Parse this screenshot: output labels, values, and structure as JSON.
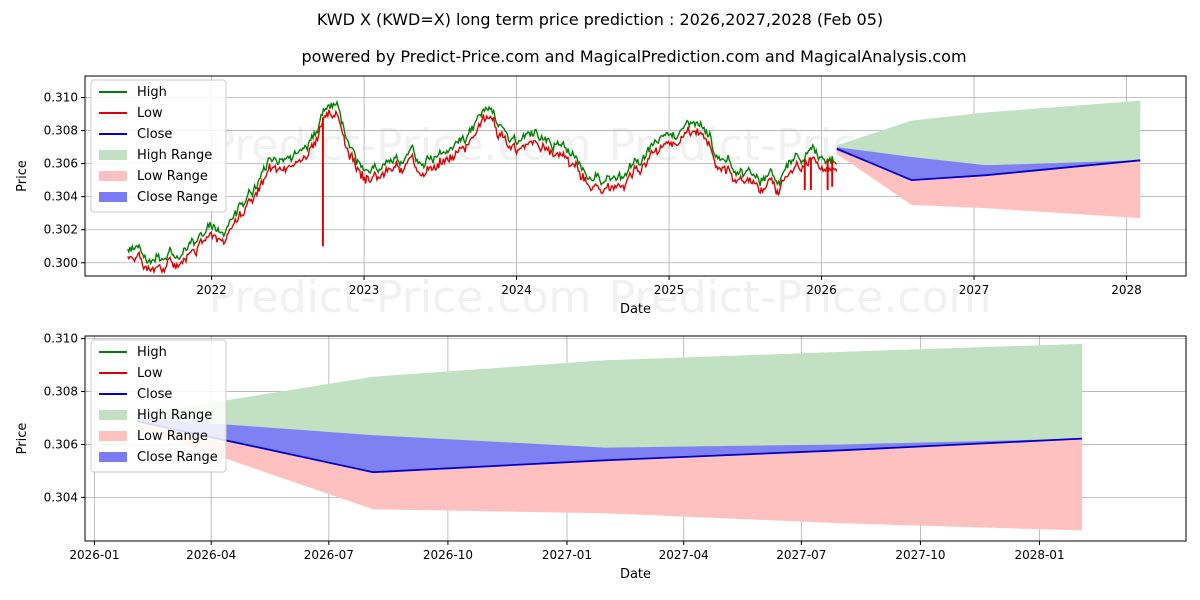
{
  "page": {
    "title": "KWD X (KWD=X) long term price prediction : 2026,2027,2028 (Feb 05)",
    "subtitle": "powered by Predict-Price.com and MagicalPrediction.com and MagicalAnalysis.com",
    "watermark": "Predict-Price.com"
  },
  "colors": {
    "high": "#008000",
    "low": "#e00000",
    "close": "#0000cc",
    "high_range": "#c2e0c2",
    "low_range": "#ffc0c0",
    "close_range": "#7b7bf5",
    "grid": "#b0b0b0"
  },
  "legend": {
    "items": [
      {
        "label": "High",
        "kind": "line",
        "color_key": "high"
      },
      {
        "label": "Low",
        "kind": "line",
        "color_key": "low"
      },
      {
        "label": "Close",
        "kind": "line",
        "color_key": "close"
      },
      {
        "label": "High Range",
        "kind": "patch",
        "color_key": "high_range"
      },
      {
        "label": "Low Range",
        "kind": "patch",
        "color_key": "low_range"
      },
      {
        "label": "Close Range",
        "kind": "patch",
        "color_key": "close_range"
      }
    ]
  },
  "chart_data": [
    {
      "type": "line",
      "id": "history",
      "xlabel": "Date",
      "ylabel": "Price",
      "xlim": [
        2021.17,
        2028.39
      ],
      "ylim": [
        0.2992,
        0.3113
      ],
      "x_ticks": [
        2022,
        2023,
        2024,
        2025,
        2026,
        2027,
        2028
      ],
      "x_tick_labels": [
        "2022",
        "2023",
        "2024",
        "2025",
        "2026",
        "2027",
        "2028"
      ],
      "y_ticks": [
        0.3,
        0.302,
        0.304,
        0.306,
        0.308,
        0.31
      ],
      "y_tick_labels": [
        "0.300",
        "0.302",
        "0.304",
        "0.306",
        "0.308",
        "0.310"
      ],
      "grid": true,
      "legend_position": "upper-left",
      "history_anchors": [
        [
          2021.45,
          0.3006
        ],
        [
          2021.55,
          0.3003
        ],
        [
          2021.62,
          0.3
        ],
        [
          2021.75,
          0.3005
        ],
        [
          2021.9,
          0.3012
        ],
        [
          2022.0,
          0.3022
        ],
        [
          2022.08,
          0.302
        ],
        [
          2022.15,
          0.3022
        ],
        [
          2022.22,
          0.3032
        ],
        [
          2022.3,
          0.3045
        ],
        [
          2022.37,
          0.3058
        ],
        [
          2022.45,
          0.3064
        ],
        [
          2022.55,
          0.306
        ],
        [
          2022.62,
          0.3068
        ],
        [
          2022.7,
          0.3078
        ],
        [
          2022.76,
          0.3098
        ],
        [
          2022.82,
          0.3094
        ],
        [
          2022.88,
          0.307
        ],
        [
          2022.95,
          0.3058
        ],
        [
          2023.05,
          0.3052
        ],
        [
          2023.15,
          0.306
        ],
        [
          2023.28,
          0.3062
        ],
        [
          2023.4,
          0.3058
        ],
        [
          2023.5,
          0.3066
        ],
        [
          2023.6,
          0.307
        ],
        [
          2023.7,
          0.3078
        ],
        [
          2023.8,
          0.3088
        ],
        [
          2023.9,
          0.308
        ],
        [
          2024.0,
          0.307
        ],
        [
          2024.12,
          0.3072
        ],
        [
          2024.25,
          0.307
        ],
        [
          2024.4,
          0.306
        ],
        [
          2024.5,
          0.3052
        ],
        [
          2024.6,
          0.305
        ],
        [
          2024.7,
          0.3046
        ],
        [
          2024.78,
          0.3058
        ],
        [
          2024.9,
          0.3068
        ],
        [
          2025.0,
          0.3072
        ],
        [
          2025.1,
          0.3078
        ],
        [
          2025.2,
          0.3078
        ],
        [
          2025.3,
          0.3066
        ],
        [
          2025.4,
          0.306
        ],
        [
          2025.5,
          0.3052
        ],
        [
          2025.62,
          0.305
        ],
        [
          2025.72,
          0.305
        ],
        [
          2025.82,
          0.306
        ],
        [
          2025.92,
          0.3064
        ],
        [
          2026.0,
          0.3062
        ],
        [
          2026.1,
          0.3062
        ]
      ],
      "spikes": [
        {
          "x": 2022.73,
          "low": 0.301
        },
        {
          "x": 2025.89,
          "low": 0.3044
        },
        {
          "x": 2025.93,
          "low": 0.3044
        },
        {
          "x": 2026.04,
          "low": 0.3044
        },
        {
          "x": 2026.07,
          "low": 0.3046
        }
      ],
      "forecast": {
        "x": [
          2026.1,
          2026.59,
          2027.08,
          2028.09
        ],
        "close": [
          0.3069,
          0.305,
          0.3053,
          0.3062
        ],
        "high_upper": [
          0.3071,
          0.3086,
          0.3091,
          0.3098
        ],
        "low_lower": [
          0.3066,
          0.3035,
          0.3033,
          0.3027
        ],
        "close_upper": [
          0.307,
          0.3064,
          0.3059,
          0.3062
        ],
        "close_lower": [
          0.3068,
          0.305,
          0.3053,
          0.3062
        ]
      }
    },
    {
      "type": "area",
      "id": "forecast-zoom",
      "xlabel": "Date",
      "ylabel": "Price",
      "xlim": [
        2025.98,
        2028.31
      ],
      "ylim": [
        0.30235,
        0.3101
      ],
      "x_ticks": [
        2026.0,
        2026.247,
        2026.496,
        2026.748,
        2027.0,
        2027.247,
        2027.496,
        2027.748,
        2028.0
      ],
      "x_tick_labels": [
        "2026-01",
        "2026-04",
        "2026-07",
        "2026-10",
        "2027-01",
        "2027-04",
        "2027-07",
        "2027-10",
        "2028-01"
      ],
      "y_ticks": [
        0.304,
        0.306,
        0.308,
        0.31
      ],
      "y_tick_labels": [
        "0.304",
        "0.306",
        "0.308",
        "0.310"
      ],
      "grid": true,
      "legend_position": "upper-left",
      "forecast": {
        "x": [
          2026.09,
          2026.59,
          2027.08,
          2027.58,
          2028.09
        ],
        "close": [
          0.30688,
          0.30495,
          0.3054,
          0.30578,
          0.30622
        ],
        "high_upper": [
          0.30712,
          0.30856,
          0.30918,
          0.3095,
          0.3098
        ],
        "low_lower": [
          0.30662,
          0.30355,
          0.3034,
          0.30302,
          0.30275
        ],
        "close_upper": [
          0.307,
          0.30635,
          0.30588,
          0.306,
          0.30622
        ],
        "close_lower": [
          0.30688,
          0.30495,
          0.3054,
          0.30578,
          0.30622
        ]
      }
    }
  ]
}
